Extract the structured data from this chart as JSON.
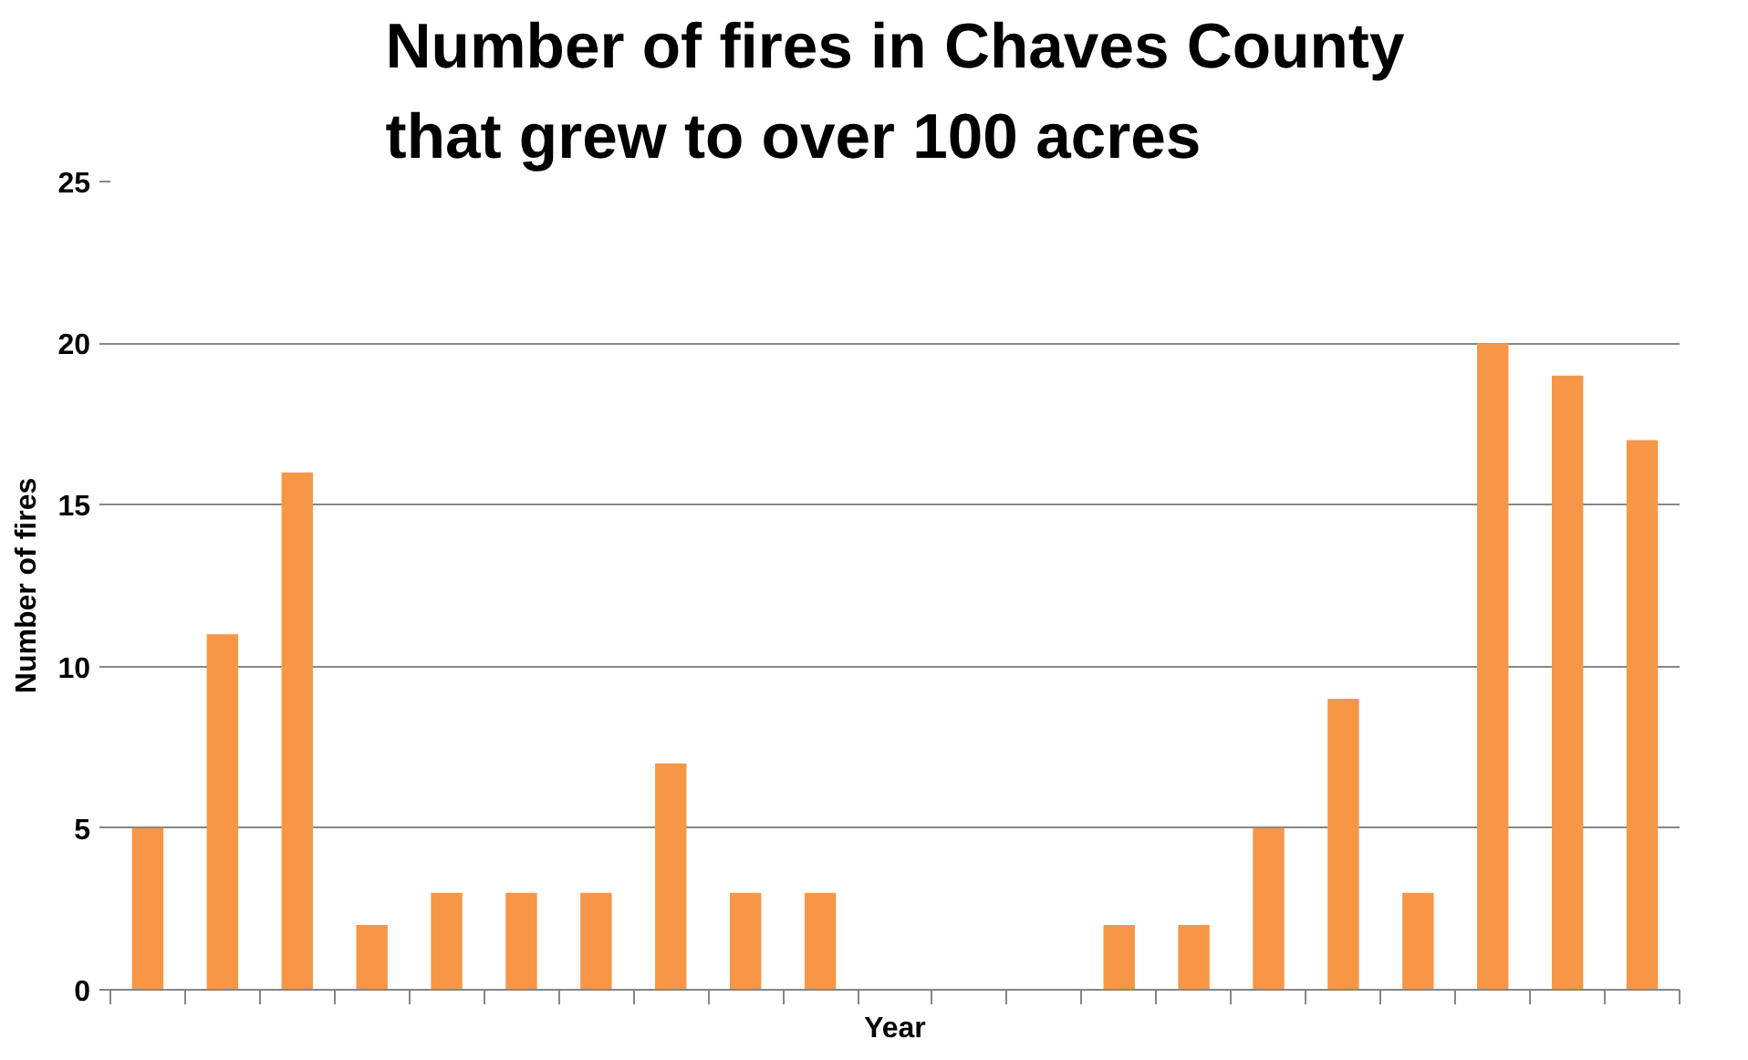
{
  "chart_data": {
    "type": "bar",
    "title": "Number of fires in Chaves County that grew to over 100 acres",
    "xlabel": "Year",
    "ylabel": "Number of fires",
    "categories": [
      null,
      null,
      null,
      null,
      null,
      null,
      null,
      null,
      null,
      null,
      null,
      null,
      null,
      null,
      null,
      null,
      null,
      null,
      null,
      null,
      null
    ],
    "values": [
      5,
      11,
      16,
      2,
      3,
      3,
      3,
      7,
      3,
      3,
      0,
      0,
      0,
      2,
      2,
      5,
      9,
      3,
      20,
      19,
      17
    ],
    "color": "#f79646",
    "ylim": [
      0,
      25
    ],
    "yticks": [
      0,
      5,
      10,
      15,
      20,
      25
    ],
    "grid": "y"
  }
}
